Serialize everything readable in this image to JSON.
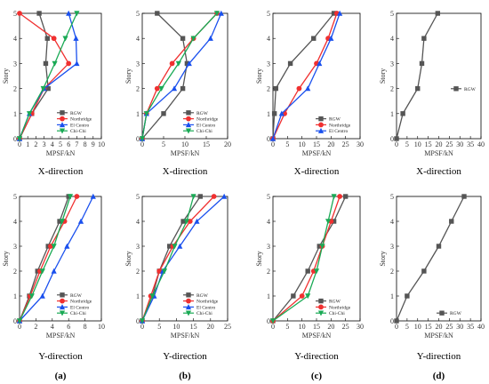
{
  "colors": {
    "RGW": "#555555",
    "Northridge": "#f03030",
    "El Centro": "#1a50ee",
    "Chi-Chi": "#1aaa55"
  },
  "markers": {
    "RGW": "square",
    "Northridge": "circle",
    "El Centro": "triangle-up",
    "Chi-Chi": "triangle-down"
  },
  "chart_data": [
    {
      "type": "line",
      "ylabel": "Story",
      "xlabel": "MPSF/kN",
      "caption": "X-direction",
      "xlim": [
        0,
        10
      ],
      "ylim": [
        0,
        5
      ],
      "xticks": [
        0,
        1,
        2,
        3,
        4,
        5,
        6,
        7,
        8,
        9,
        10
      ],
      "yticks": [
        0,
        1,
        2,
        3,
        4,
        5
      ],
      "legend": "bottom-right",
      "series": [
        {
          "name": "RGW",
          "x": [
            0,
            1.5,
            3.5,
            3.2,
            3.4,
            2.4
          ],
          "y": [
            0,
            1,
            2,
            3,
            4,
            5
          ]
        },
        {
          "name": "Northridge",
          "x": [
            0,
            1.5,
            3.0,
            6.0,
            4.2,
            0
          ],
          "y": [
            0,
            1,
            2,
            3,
            4,
            5
          ]
        },
        {
          "name": "El Centro",
          "x": [
            0,
            1.2,
            3.0,
            7.0,
            6.9,
            6.0
          ],
          "y": [
            0,
            1,
            2,
            3,
            4,
            5
          ]
        },
        {
          "name": "Chi-Chi",
          "x": [
            0,
            1.2,
            2.9,
            4.3,
            5.6,
            7.0
          ],
          "y": [
            0,
            1,
            2,
            3,
            4,
            5
          ]
        }
      ]
    },
    {
      "type": "line",
      "ylabel": "Story",
      "xlabel": "MPSF/kN",
      "caption": "X-direction",
      "xlim": [
        0,
        20
      ],
      "ylim": [
        0,
        5
      ],
      "xticks": [
        0,
        5,
        10,
        15,
        20
      ],
      "yticks": [
        0,
        1,
        2,
        3,
        4,
        5
      ],
      "legend": "bottom-right",
      "series": [
        {
          "name": "RGW",
          "x": [
            0,
            5,
            9.5,
            10.5,
            9.5,
            3.5
          ],
          "y": [
            0,
            1,
            2,
            3,
            4,
            5
          ]
        },
        {
          "name": "Northridge",
          "x": [
            0,
            1,
            3.5,
            7,
            12,
            17.5
          ],
          "y": [
            0,
            1,
            2,
            3,
            4,
            5
          ]
        },
        {
          "name": "El Centro",
          "x": [
            0,
            1,
            7.5,
            11,
            16,
            18.5
          ],
          "y": [
            0,
            1,
            2,
            3,
            4,
            5
          ]
        },
        {
          "name": "Chi-Chi",
          "x": [
            0,
            1,
            4.5,
            8.5,
            12,
            17.5
          ],
          "y": [
            0,
            1,
            2,
            3,
            4,
            5
          ]
        }
      ]
    },
    {
      "type": "line",
      "ylabel": "Story",
      "xlabel": "MPSF/kN",
      "caption": "X-direction",
      "xlim": [
        0,
        30
      ],
      "ylim": [
        0,
        5
      ],
      "xticks": [
        0,
        5,
        10,
        15,
        20,
        25,
        30
      ],
      "yticks": [
        0,
        1,
        2,
        3,
        4,
        5
      ],
      "legend": "bottom-right",
      "series": [
        {
          "name": "RGW",
          "x": [
            0,
            0.5,
            1,
            6,
            14,
            21
          ],
          "y": [
            0,
            1,
            2,
            3,
            4,
            5
          ]
        },
        {
          "name": "Northridge",
          "x": [
            0,
            4,
            9,
            15,
            19,
            22
          ],
          "y": [
            0,
            1,
            2,
            3,
            4,
            5
          ]
        },
        {
          "name": "El Centro",
          "x": [
            0,
            3,
            12,
            16,
            20,
            23
          ],
          "y": [
            0,
            1,
            2,
            3,
            4,
            5
          ]
        }
      ]
    },
    {
      "type": "line",
      "ylabel": "Story",
      "xlabel": "MPSF/kN",
      "caption": "X-direction",
      "xlim": [
        0,
        40
      ],
      "ylim": [
        0,
        5
      ],
      "xticks": [
        0,
        5,
        10,
        15,
        20,
        25,
        30,
        35,
        40
      ],
      "yticks": [
        0,
        1,
        2,
        3,
        4,
        5
      ],
      "legend": "right",
      "series": [
        {
          "name": "RGW",
          "x": [
            0,
            3,
            10,
            12,
            13,
            19.5
          ],
          "y": [
            0,
            1,
            2,
            3,
            4,
            5
          ]
        }
      ]
    },
    {
      "type": "line",
      "ylabel": "Story",
      "xlabel": "MPSF/kN",
      "caption": "Y-direction",
      "panel_label": "(a)",
      "xlim": [
        0,
        10
      ],
      "ylim": [
        0,
        5
      ],
      "xticks": [
        0,
        2,
        4,
        6,
        8,
        10
      ],
      "yticks": [
        0,
        1,
        2,
        3,
        4,
        5
      ],
      "legend": "bottom-right",
      "series": [
        {
          "name": "RGW",
          "x": [
            0,
            1.2,
            2.2,
            3.5,
            4.9,
            6.0
          ],
          "y": [
            0,
            1,
            2,
            3,
            4,
            5
          ]
        },
        {
          "name": "Northridge",
          "x": [
            0,
            1.3,
            2.5,
            3.8,
            5.5,
            7.0
          ],
          "y": [
            0,
            1,
            2,
            3,
            4,
            5
          ]
        },
        {
          "name": "El Centro",
          "x": [
            0,
            2.8,
            4.2,
            5.8,
            7.5,
            9.0
          ],
          "y": [
            0,
            1,
            2,
            3,
            4,
            5
          ]
        },
        {
          "name": "Chi-Chi",
          "x": [
            0,
            1.5,
            2.8,
            4.2,
            5.2,
            6.2
          ],
          "y": [
            0,
            1,
            2,
            3,
            4,
            5
          ]
        }
      ]
    },
    {
      "type": "line",
      "ylabel": "Story",
      "xlabel": "MPSF/kN",
      "caption": "Y-direction",
      "panel_label": "(b)",
      "xlim": [
        0,
        25
      ],
      "ylim": [
        0,
        5
      ],
      "xticks": [
        0,
        5,
        10,
        15,
        20,
        25
      ],
      "yticks": [
        0,
        1,
        2,
        3,
        4,
        5
      ],
      "legend": "bottom-right",
      "series": [
        {
          "name": "RGW",
          "x": [
            0,
            3,
            5,
            8,
            12,
            17
          ],
          "y": [
            0,
            1,
            2,
            3,
            4,
            5
          ]
        },
        {
          "name": "Northridge",
          "x": [
            0,
            2.5,
            5,
            9,
            14,
            21
          ],
          "y": [
            0,
            1,
            2,
            3,
            4,
            5
          ]
        },
        {
          "name": "El Centro",
          "x": [
            0,
            3.5,
            6,
            11,
            16,
            24
          ],
          "y": [
            0,
            1,
            2,
            3,
            4,
            5
          ]
        },
        {
          "name": "Chi-Chi",
          "x": [
            0,
            3,
            6.5,
            9.5,
            13,
            15
          ],
          "y": [
            0,
            1,
            2,
            3,
            4,
            5
          ]
        }
      ]
    },
    {
      "type": "line",
      "ylabel": "Story",
      "xlabel": "MPSF/kN",
      "caption": "Y-direction",
      "panel_label": "(c)",
      "xlim": [
        0,
        30
      ],
      "ylim": [
        0,
        5
      ],
      "xticks": [
        0,
        5,
        10,
        15,
        20,
        25,
        30
      ],
      "yticks": [
        0,
        1,
        2,
        3,
        4,
        5
      ],
      "legend": "bottom-right",
      "series": [
        {
          "name": "RGW",
          "x": [
            0,
            7,
            12,
            16,
            21,
            25
          ],
          "y": [
            0,
            1,
            2,
            3,
            4,
            5
          ]
        },
        {
          "name": "Northridge",
          "x": [
            0,
            10,
            14,
            17,
            20,
            23
          ],
          "y": [
            0,
            1,
            2,
            3,
            4,
            5
          ]
        },
        {
          "name": "Chi-Chi",
          "x": [
            0,
            12,
            15,
            17,
            19,
            21
          ],
          "y": [
            0,
            1,
            2,
            3,
            4,
            5
          ]
        }
      ]
    },
    {
      "type": "line",
      "ylabel": "Story",
      "xlabel": "MPSF/kN",
      "caption": "Y-direction",
      "panel_label": "(d)",
      "xlim": [
        0,
        40
      ],
      "ylim": [
        0,
        5
      ],
      "xticks": [
        0,
        5,
        10,
        15,
        20,
        25,
        30,
        35,
        40
      ],
      "yticks": [
        0,
        1,
        2,
        3,
        4,
        5
      ],
      "legend": "bottom-right",
      "series": [
        {
          "name": "RGW",
          "x": [
            0,
            5,
            13,
            20,
            26,
            32
          ],
          "y": [
            0,
            1,
            2,
            3,
            4,
            5
          ]
        }
      ]
    }
  ]
}
